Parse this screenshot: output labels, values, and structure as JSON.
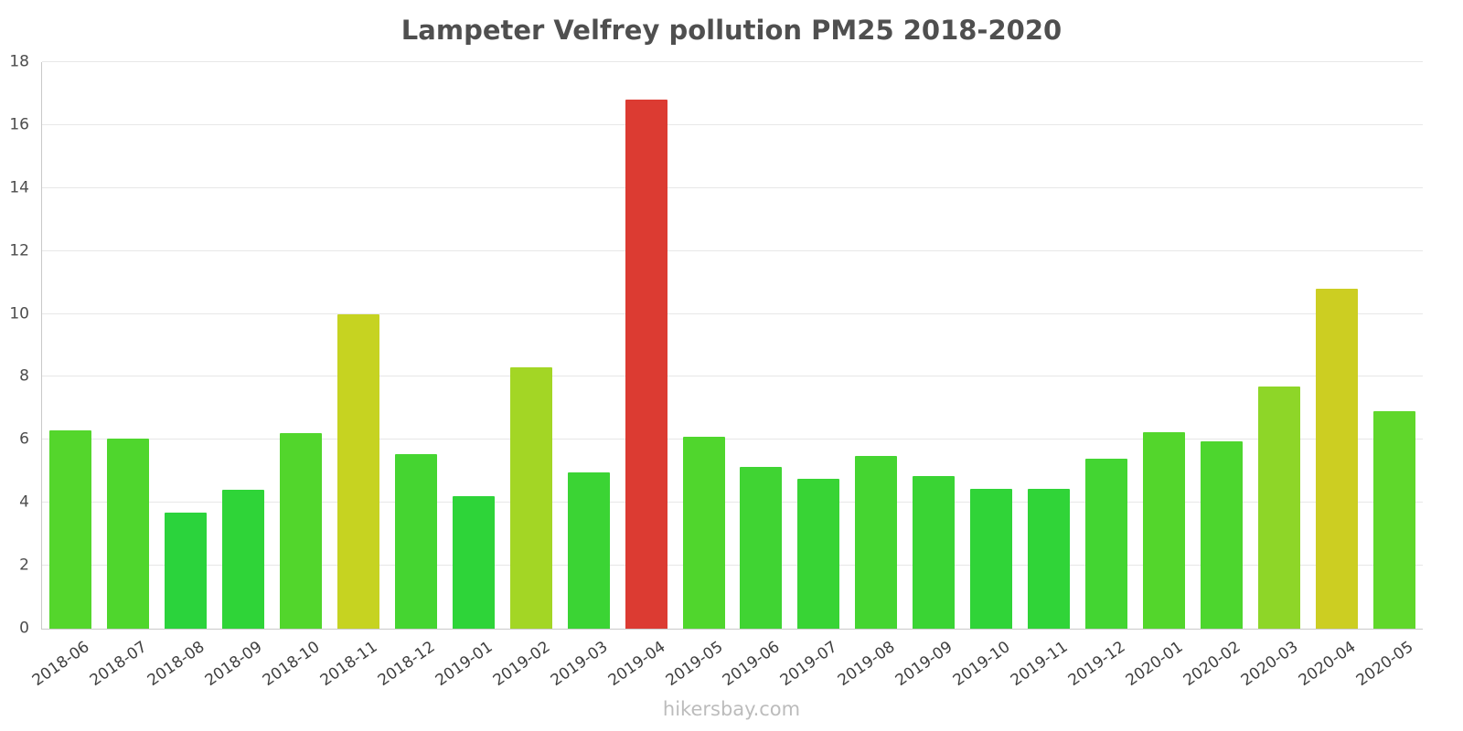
{
  "chart_data": {
    "type": "bar",
    "title": "Lampeter Velfrey pollution PM25 2018-2020",
    "categories": [
      "2018-06",
      "2018-07",
      "2018-08",
      "2018-09",
      "2018-10",
      "2018-11",
      "2018-12",
      "2019-01",
      "2019-02",
      "2019-03",
      "2019-04",
      "2019-05",
      "2019-06",
      "2019-07",
      "2019-08",
      "2019-09",
      "2019-10",
      "2019-11",
      "2019-12",
      "2020-01",
      "2020-02",
      "2020-03",
      "2020-04",
      "2020-05"
    ],
    "values": [
      6.3,
      6.05,
      3.7,
      4.4,
      6.2,
      10.0,
      5.55,
      4.2,
      8.3,
      4.95,
      16.8,
      6.1,
      5.15,
      4.75,
      5.5,
      4.85,
      4.45,
      4.45,
      5.4,
      6.25,
      5.95,
      7.7,
      10.8,
      6.9
    ],
    "colors": [
      "#54d62c",
      "#4fd62d",
      "#2bd33c",
      "#2fd438",
      "#52d62c",
      "#c6d321",
      "#45d531",
      "#2ed439",
      "#a3d625",
      "#3bd434",
      "#dc3b32",
      "#50d62d",
      "#40d433",
      "#38d435",
      "#45d531",
      "#3ad434",
      "#30d438",
      "#30d438",
      "#43d532",
      "#53d62c",
      "#4dd62e",
      "#8ed628",
      "#ccce22",
      "#60d72b"
    ],
    "xlabel": "",
    "ylabel": "",
    "ylim": [
      0,
      18
    ],
    "ytick_step": 2,
    "grid": true,
    "legend": false
  },
  "watermark": "hikersbay.com"
}
